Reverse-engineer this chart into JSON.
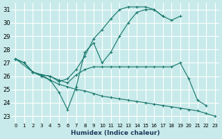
{
  "xlabel": "Humidex (Indice chaleur)",
  "bg_color": "#c8eaea",
  "line_color": "#1a7a6e",
  "grid_color": "#ffffff",
  "xlim": [
    -0.5,
    23.5
  ],
  "ylim": [
    22.5,
    31.5
  ],
  "xticks": [
    0,
    1,
    2,
    3,
    4,
    5,
    6,
    7,
    8,
    9,
    10,
    11,
    12,
    13,
    14,
    15,
    16,
    17,
    18,
    19,
    20,
    21,
    22,
    23
  ],
  "yticks": [
    23,
    24,
    25,
    26,
    27,
    28,
    29,
    30,
    31
  ],
  "lines": [
    {
      "x": [
        0,
        2,
        3,
        4,
        5,
        6,
        7,
        8,
        9,
        10,
        11,
        12,
        13,
        14,
        15,
        16,
        17,
        18,
        19,
        20,
        21,
        22,
        23
      ],
      "y": [
        27.3,
        26.3,
        26.0,
        25.7,
        25.4,
        25.2,
        25.0,
        24.9,
        24.7,
        24.5,
        24.4,
        24.3,
        24.2,
        24.1,
        24.0,
        23.9,
        23.8,
        23.7,
        23.6,
        23.5,
        23.4,
        23.2,
        23.0
      ]
    },
    {
      "x": [
        0,
        1,
        2,
        3,
        4,
        5,
        6,
        7,
        8,
        9,
        10,
        11,
        12,
        13,
        14,
        15,
        16,
        17,
        18,
        19
      ],
      "y": [
        27.3,
        27.0,
        26.3,
        26.1,
        25.7,
        24.8,
        23.5,
        25.2,
        27.8,
        28.5,
        27.0,
        27.8,
        29.0,
        30.0,
        30.8,
        31.0,
        31.0,
        30.5,
        30.2,
        30.5
      ]
    },
    {
      "x": [
        0,
        1,
        2,
        3,
        4,
        5,
        6,
        7,
        8,
        9,
        10,
        11,
        12,
        13,
        14,
        15,
        16,
        17
      ],
      "y": [
        27.3,
        27.0,
        26.3,
        26.1,
        26.0,
        25.6,
        25.8,
        26.5,
        27.5,
        28.8,
        29.5,
        30.3,
        31.0,
        31.2,
        31.2,
        31.2,
        31.0,
        30.5
      ]
    },
    {
      "x": [
        0,
        1,
        2,
        3,
        4,
        5,
        6,
        7,
        8,
        9,
        10,
        11,
        12,
        13,
        14,
        15,
        16,
        17,
        18,
        19,
        20,
        21,
        22,
        23
      ],
      "y": [
        27.3,
        27.0,
        26.3,
        26.1,
        26.0,
        25.7,
        25.5,
        26.1,
        26.5,
        26.7,
        26.7,
        26.7,
        26.7,
        26.7,
        26.7,
        26.7,
        26.7,
        26.7,
        26.7,
        27.0,
        25.8,
        24.2,
        23.8,
        null
      ]
    }
  ]
}
